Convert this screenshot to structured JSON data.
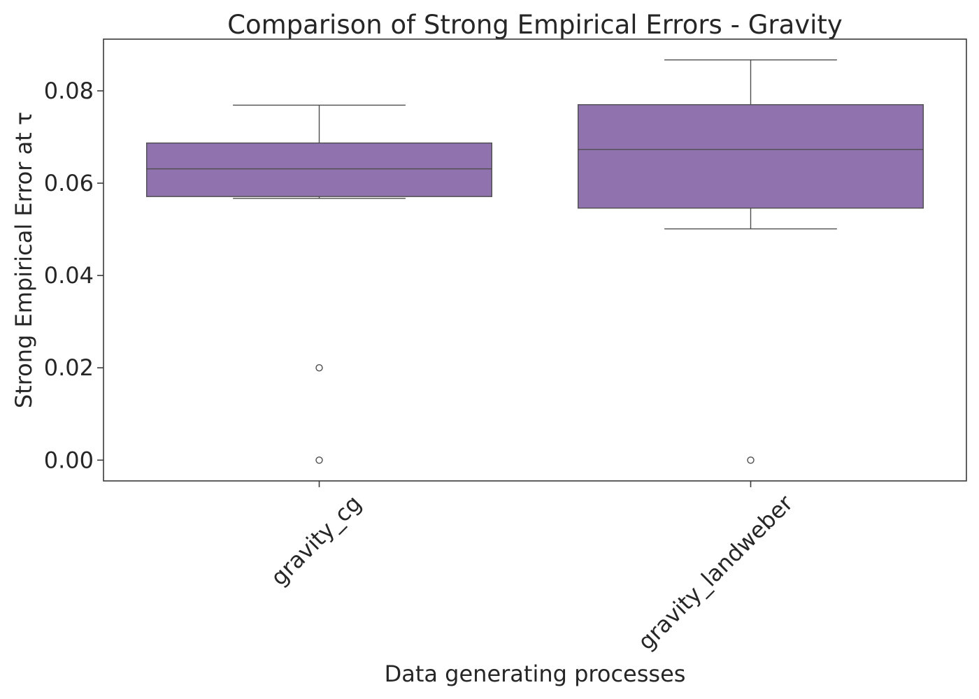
{
  "chart_data": {
    "type": "boxplot",
    "title": "Comparison of Strong Empirical Errors - Gravity",
    "xlabel": "Data generating processes",
    "ylabel": "Strong Empirical Error at τ",
    "ylim": [
      -0.0045,
      0.0912
    ],
    "yticks": [
      "0.00",
      "0.02",
      "0.04",
      "0.06",
      "0.08"
    ],
    "ytick_values": [
      0.0,
      0.02,
      0.04,
      0.06,
      0.08
    ],
    "grid": false,
    "legend": "none",
    "box_color": "#9072AF",
    "categories": [
      "gravity_cg",
      "gravity_landweber"
    ],
    "boxes": [
      {
        "category": "gravity_cg",
        "whisker_low": 0.0567,
        "q1": 0.0571,
        "median": 0.0631,
        "q3": 0.0687,
        "whisker_high": 0.0769,
        "outliers": [
          0.02,
          0.0
        ]
      },
      {
        "category": "gravity_landweber",
        "whisker_low": 0.0501,
        "q1": 0.0546,
        "median": 0.0673,
        "q3": 0.077,
        "whisker_high": 0.0867,
        "outliers": [
          0.0
        ]
      }
    ]
  }
}
